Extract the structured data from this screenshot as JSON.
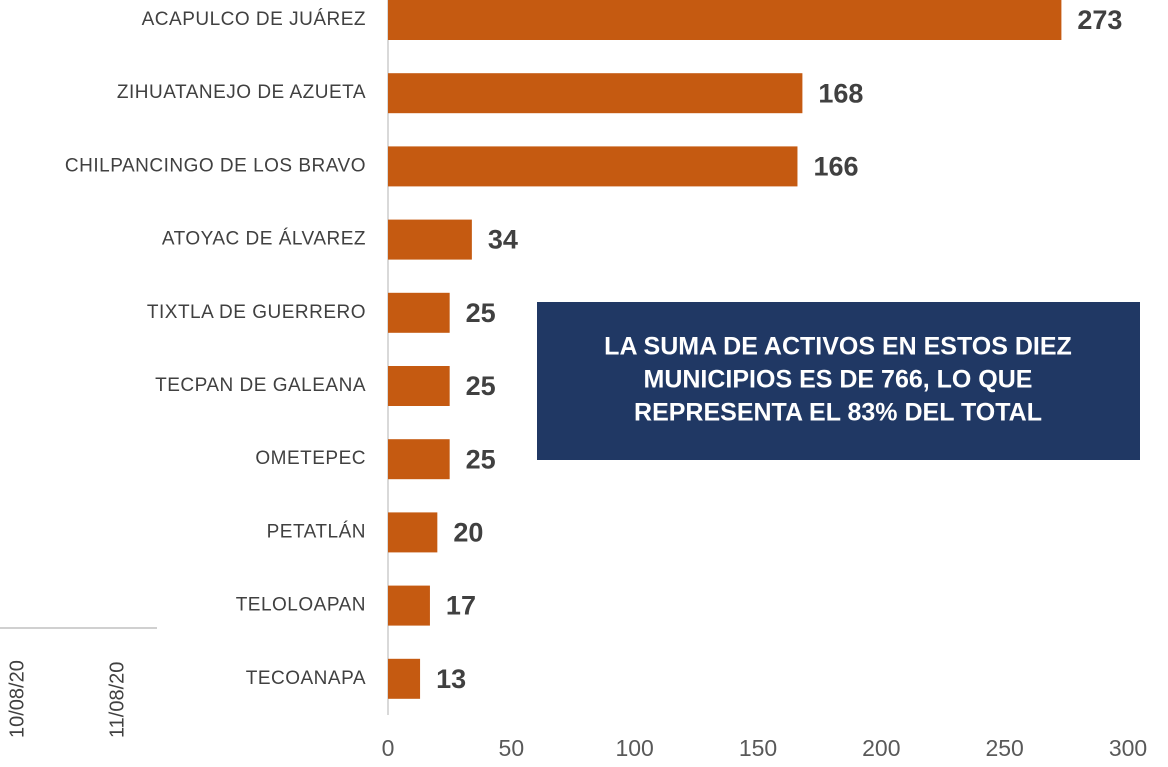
{
  "chart_data": {
    "type": "hbar",
    "categories": [
      "ACAPULCO DE JUÁREZ",
      "ZIHUATANEJO DE AZUETA",
      "CHILPANCINGO DE LOS BRAVO",
      "ATOYAC DE ÁLVAREZ",
      "TIXTLA DE GUERRERO",
      "TECPAN DE GALEANA",
      "OMETEPEC",
      "PETATLÁN",
      "TELOLOAPAN",
      "TECOANAPA"
    ],
    "values": [
      273,
      168,
      166,
      34,
      25,
      25,
      25,
      20,
      17,
      13
    ],
    "color": "#c55a11",
    "xlim": [
      0,
      300
    ],
    "xticks": [
      0,
      50,
      100,
      150,
      200,
      250,
      300
    ],
    "grid": false,
    "annotation": [
      "LA SUMA DE ACTIVOS EN ESTOS DIEZ",
      "MUNICIPIOS ES DE 766, LO QUE",
      "REPRESENTA EL 83% DEL TOTAL"
    ],
    "annotation_color": "#203864"
  },
  "background_labels": [
    "10/08/20",
    "11/08/20"
  ]
}
